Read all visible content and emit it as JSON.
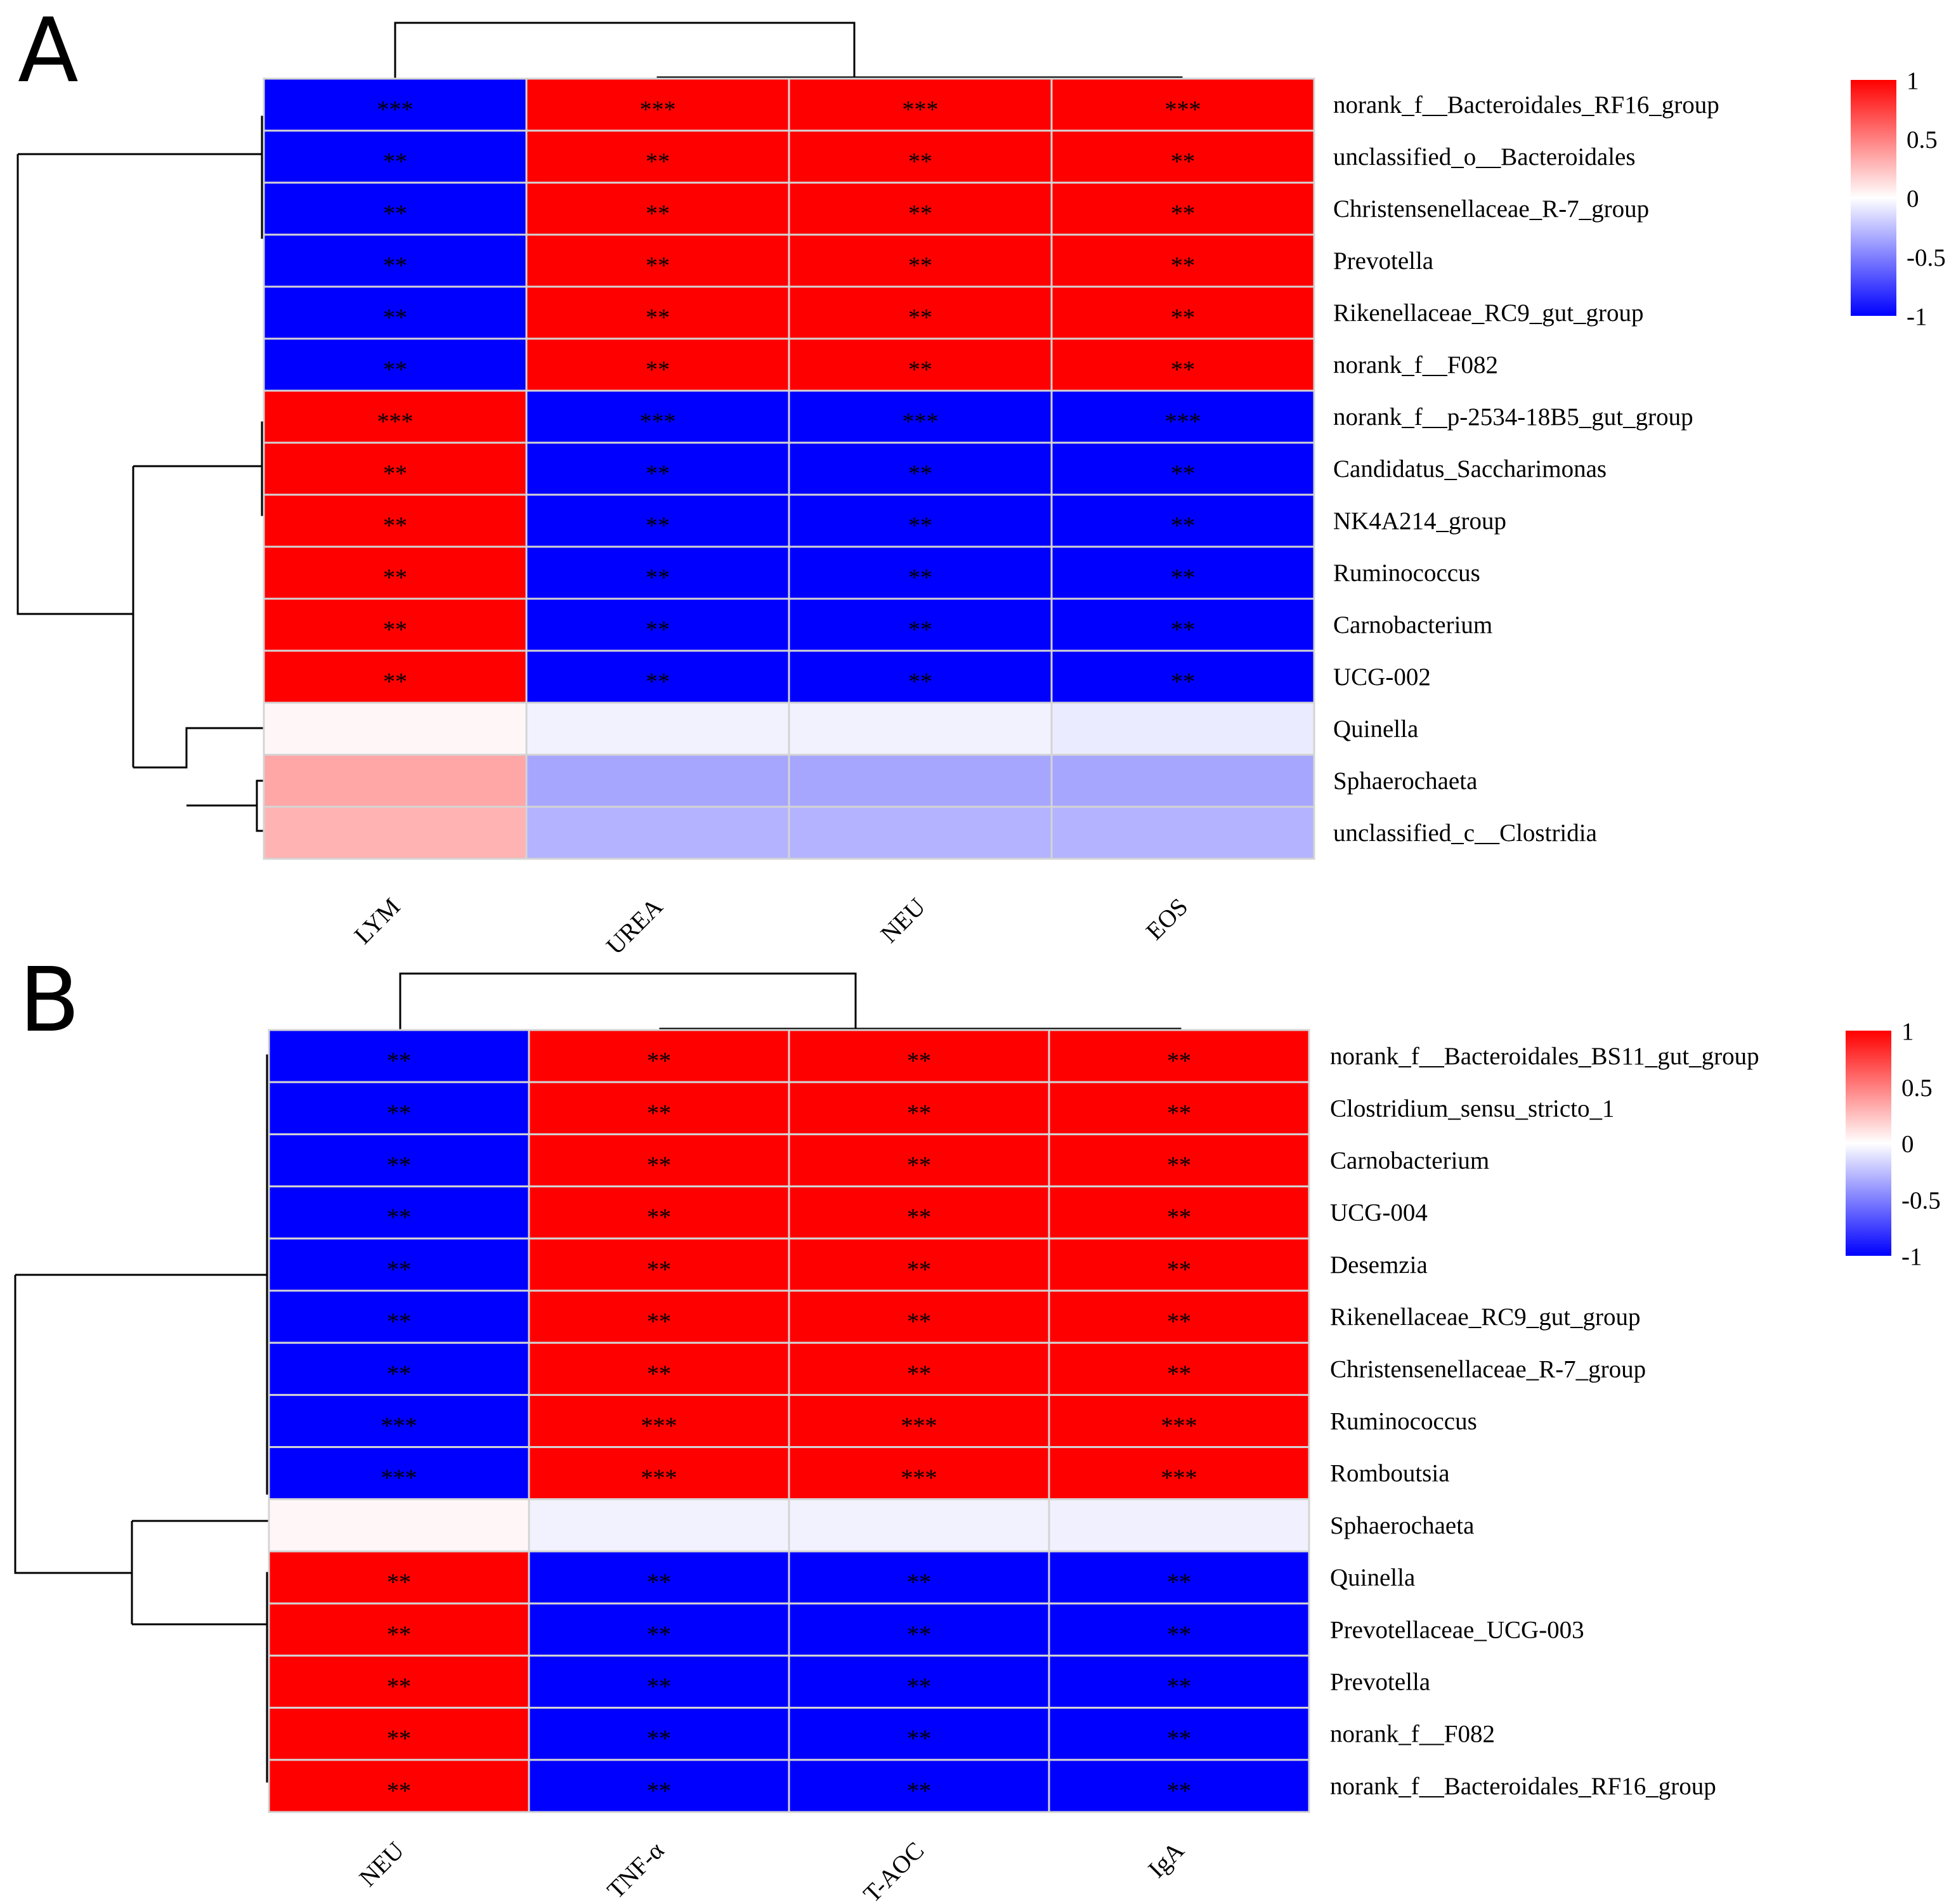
{
  "colors": {
    "neg": "#0000ff",
    "mid": "#ffffff",
    "pos": "#ff0000",
    "grid": "#d4d4d4",
    "line": "#000000",
    "text": "#000000"
  },
  "chart_data": [
    {
      "type": "heatmap",
      "panel": "A",
      "columns": [
        "LYM",
        "UREA",
        "NEU",
        "EOS"
      ],
      "rows": [
        "norank_f__Bacteroidales_RF16_group",
        "unclassified_o__Bacteroidales",
        "Christensenellaceae_R-7_group",
        "Prevotella",
        "Rikenellaceae_RC9_gut_group",
        "norank_f__F082",
        "norank_f__p-2534-18B5_gut_group",
        "Candidatus_Saccharimonas",
        "NK4A214_group",
        "Ruminococcus",
        "Carnobacterium",
        "UCG-002",
        "Quinella",
        "Sphaerochaeta",
        "unclassified_c__Clostridia"
      ],
      "values": [
        [
          -1,
          1,
          1,
          1
        ],
        [
          -1,
          1,
          1,
          1
        ],
        [
          -1,
          1,
          1,
          1
        ],
        [
          -1,
          1,
          1,
          1
        ],
        [
          -1,
          1,
          1,
          1
        ],
        [
          -1,
          1,
          1,
          1
        ],
        [
          1,
          -1,
          -1,
          -1
        ],
        [
          1,
          -1,
          -1,
          -1
        ],
        [
          1,
          -1,
          -1,
          -1
        ],
        [
          1,
          -1,
          -1,
          -1
        ],
        [
          1,
          -1,
          -1,
          -1
        ],
        [
          1,
          -1,
          -1,
          -1
        ],
        [
          0.03,
          -0.05,
          -0.05,
          -0.08
        ],
        [
          0.35,
          -0.35,
          -0.35,
          -0.35
        ],
        [
          0.3,
          -0.3,
          -0.3,
          -0.3
        ]
      ],
      "significance": [
        [
          "***",
          "***",
          "***",
          "***"
        ],
        [
          "**",
          "**",
          "**",
          "**"
        ],
        [
          "**",
          "**",
          "**",
          "**"
        ],
        [
          "**",
          "**",
          "**",
          "**"
        ],
        [
          "**",
          "**",
          "**",
          "**"
        ],
        [
          "**",
          "**",
          "**",
          "**"
        ],
        [
          "***",
          "***",
          "***",
          "***"
        ],
        [
          "**",
          "**",
          "**",
          "**"
        ],
        [
          "**",
          "**",
          "**",
          "**"
        ],
        [
          "**",
          "**",
          "**",
          "**"
        ],
        [
          "**",
          "**",
          "**",
          "**"
        ],
        [
          "**",
          "**",
          "**",
          "**"
        ],
        [
          "",
          "",
          "",
          ""
        ],
        [
          "",
          "",
          "",
          ""
        ],
        [
          "",
          "",
          "",
          ""
        ]
      ],
      "color_scale": {
        "min": -1,
        "max": 1,
        "ticks": [
          "1",
          "0.5",
          "0",
          "-0.5",
          "-1"
        ]
      }
    },
    {
      "type": "heatmap",
      "panel": "B",
      "columns": [
        "NEU",
        "TNF-α",
        "T-AOC",
        "IgA"
      ],
      "rows": [
        "norank_f__Bacteroidales_BS11_gut_group",
        "Clostridium_sensu_stricto_1",
        "Carnobacterium",
        "UCG-004",
        "Desemzia",
        "Rikenellaceae_RC9_gut_group",
        "Christensenellaceae_R-7_group",
        "Ruminococcus",
        "Romboutsia",
        "Sphaerochaeta",
        "Quinella",
        "Prevotellaceae_UCG-003",
        "Prevotella",
        "norank_f__F082",
        "norank_f__Bacteroidales_RF16_group"
      ],
      "values": [
        [
          -1,
          1,
          1,
          1
        ],
        [
          -1,
          1,
          1,
          1
        ],
        [
          -1,
          1,
          1,
          1
        ],
        [
          -1,
          1,
          1,
          1
        ],
        [
          -1,
          1,
          1,
          1
        ],
        [
          -1,
          1,
          1,
          1
        ],
        [
          -1,
          1,
          1,
          1
        ],
        [
          -1,
          1,
          1,
          1
        ],
        [
          -1,
          1,
          1,
          1
        ],
        [
          0.03,
          -0.05,
          -0.05,
          -0.06
        ],
        [
          1,
          -1,
          -1,
          -1
        ],
        [
          1,
          -1,
          -1,
          -1
        ],
        [
          1,
          -1,
          -1,
          -1
        ],
        [
          1,
          -1,
          -1,
          -1
        ],
        [
          1,
          -1,
          -1,
          -1
        ]
      ],
      "significance": [
        [
          "**",
          "**",
          "**",
          "**"
        ],
        [
          "**",
          "**",
          "**",
          "**"
        ],
        [
          "**",
          "**",
          "**",
          "**"
        ],
        [
          "**",
          "**",
          "**",
          "**"
        ],
        [
          "**",
          "**",
          "**",
          "**"
        ],
        [
          "**",
          "**",
          "**",
          "**"
        ],
        [
          "**",
          "**",
          "**",
          "**"
        ],
        [
          "***",
          "***",
          "***",
          "***"
        ],
        [
          "***",
          "***",
          "***",
          "***"
        ],
        [
          "",
          "",
          "",
          ""
        ],
        [
          "**",
          "**",
          "**",
          "**"
        ],
        [
          "**",
          "**",
          "**",
          "**"
        ],
        [
          "**",
          "**",
          "**",
          "**"
        ],
        [
          "**",
          "**",
          "**",
          "**"
        ],
        [
          "**",
          "**",
          "**",
          "**"
        ]
      ],
      "color_scale": {
        "min": -1,
        "max": 1,
        "ticks": [
          "1",
          "0.5",
          "0",
          "-0.5",
          "-1"
        ]
      }
    }
  ]
}
